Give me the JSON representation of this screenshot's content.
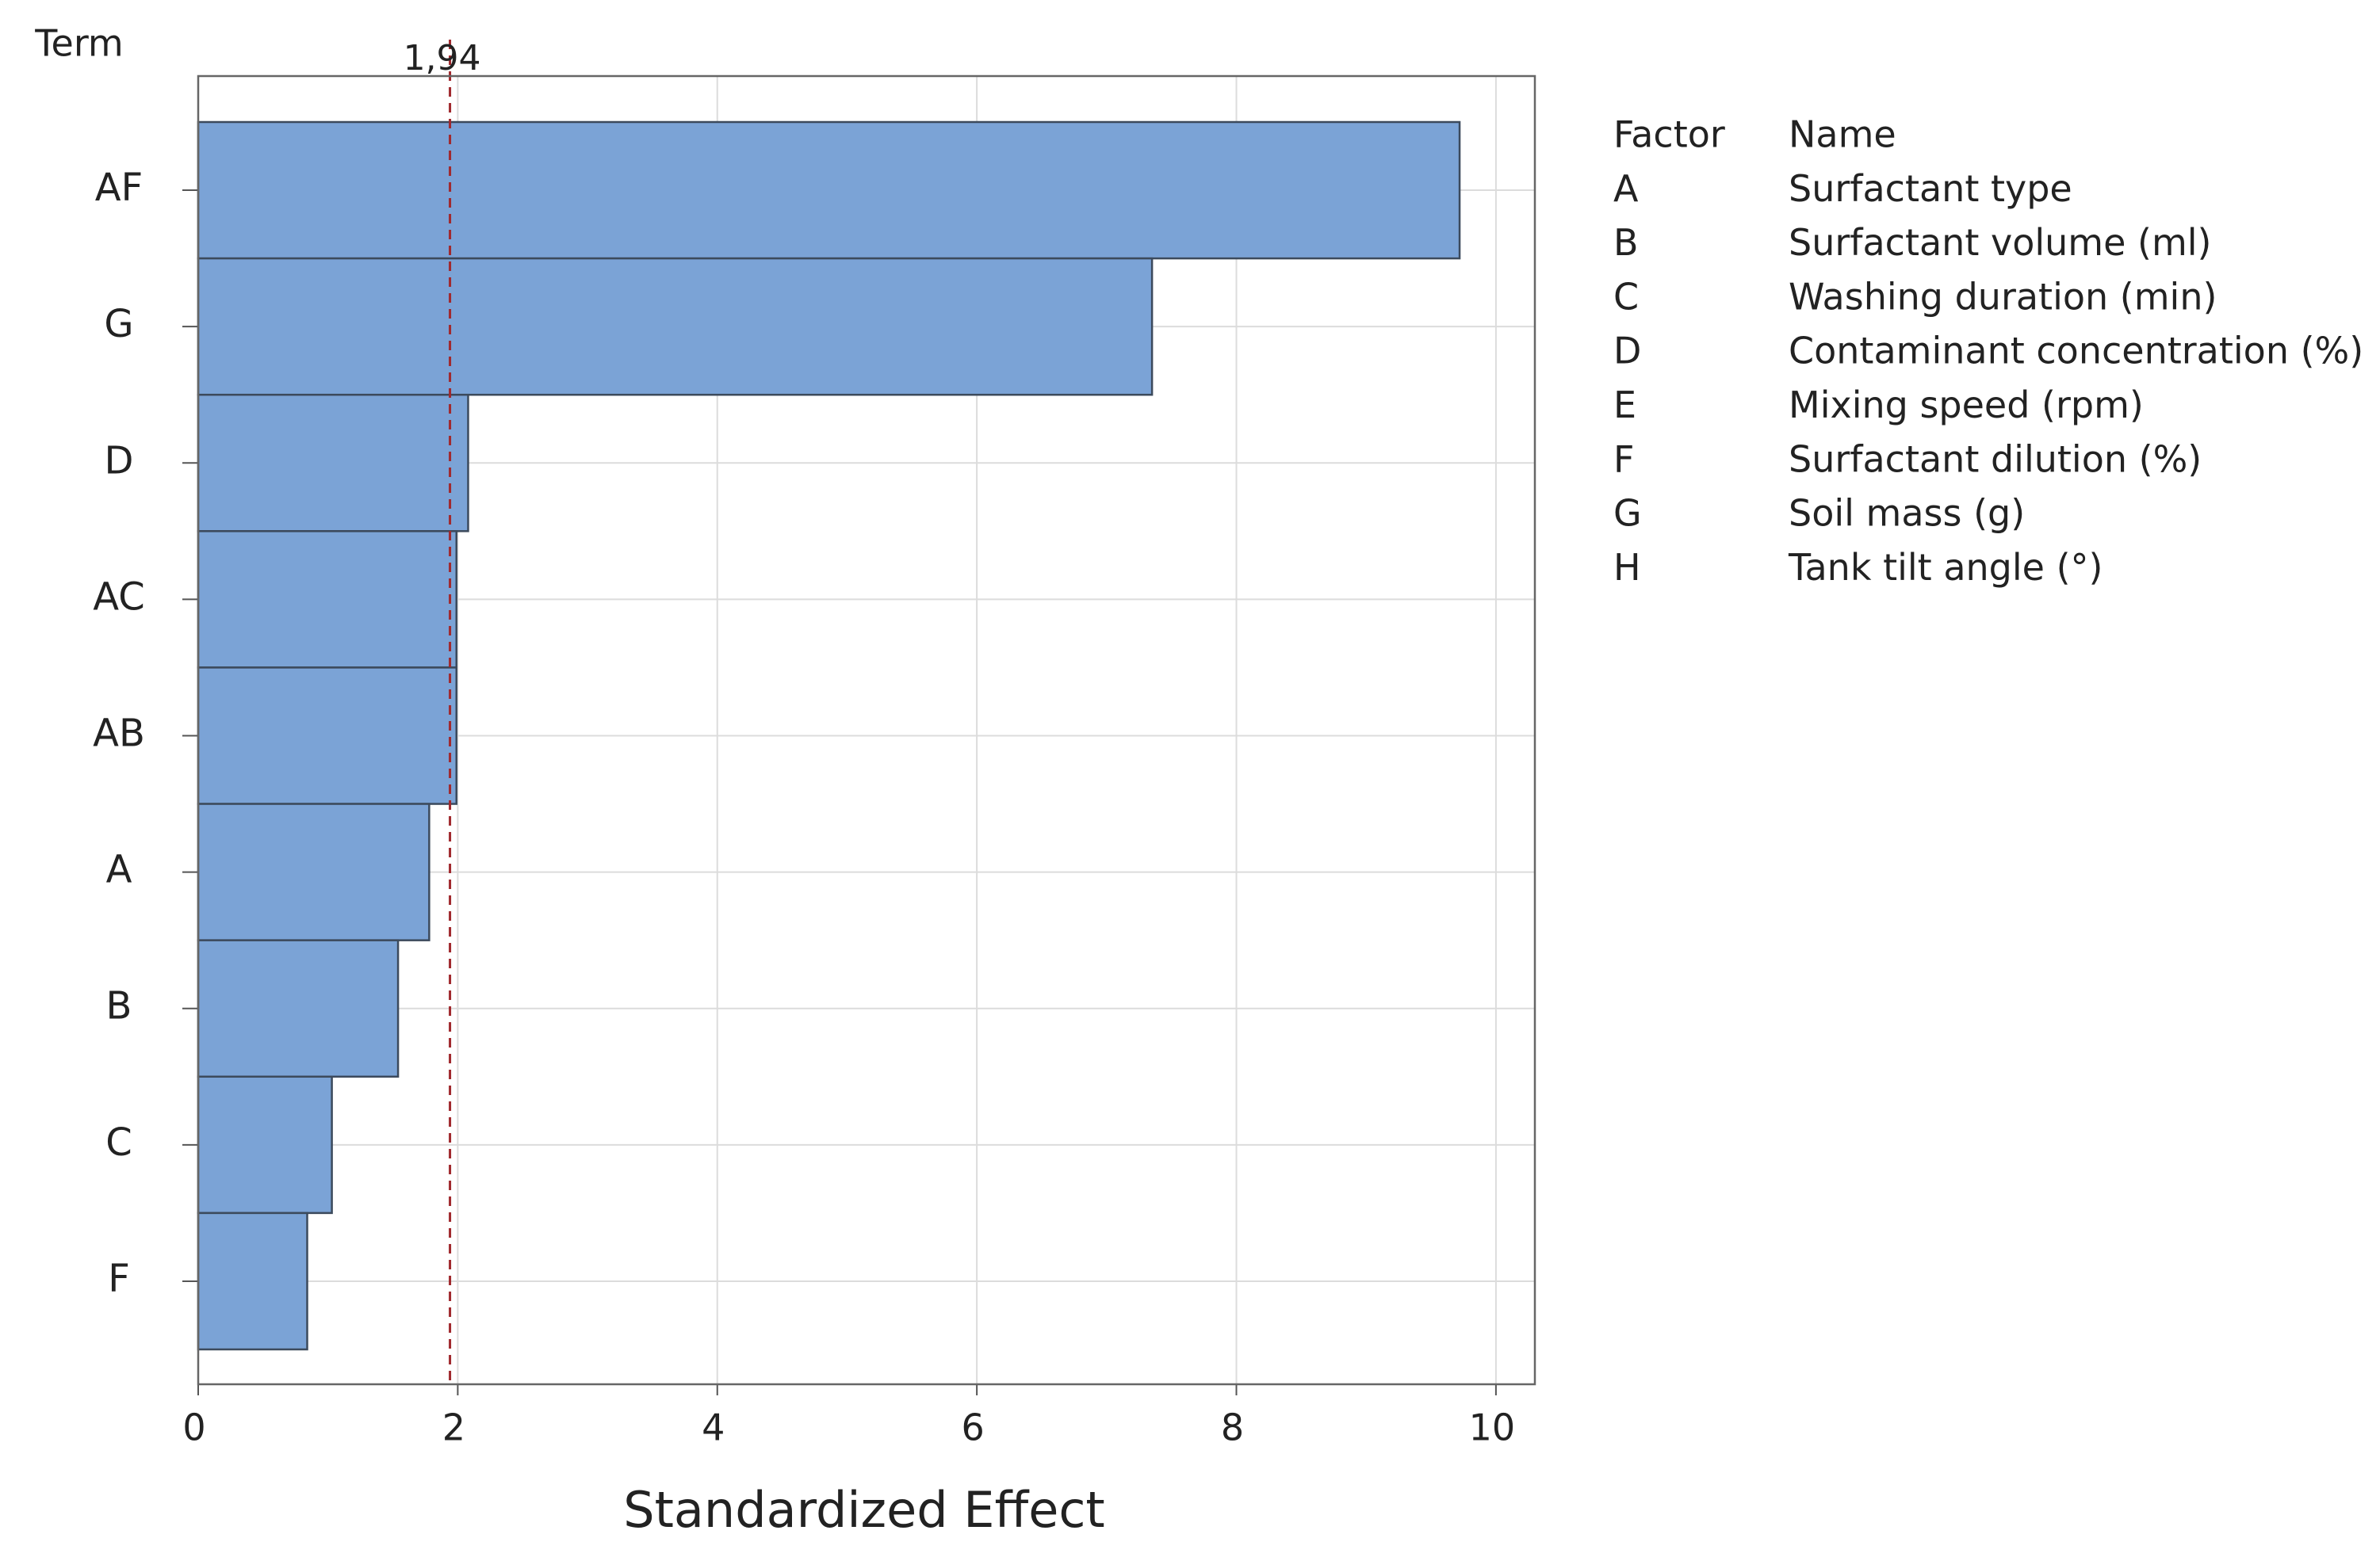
{
  "chart_data": {
    "type": "bar",
    "orientation": "horizontal",
    "ylabel": "Term",
    "xlabel": "Standardized Effect",
    "categories": [
      "AF",
      "G",
      "D",
      "AC",
      "AB",
      "A",
      "B",
      "C",
      "F"
    ],
    "values": [
      9.72,
      7.35,
      2.08,
      1.99,
      1.99,
      1.78,
      1.54,
      1.03,
      0.84
    ],
    "color": "#7ba3d6",
    "xlim": [
      0,
      10.3
    ],
    "xticks": [
      0,
      2,
      4,
      6,
      8,
      10
    ],
    "grid": true,
    "reference_line": {
      "value": 1.94,
      "label": "1,94",
      "color": "#a0282d"
    }
  },
  "factor_table": {
    "headers": [
      "Factor",
      "Name"
    ],
    "rows": [
      [
        "A",
        "Surfactant type"
      ],
      [
        "B",
        "Surfactant volume (ml)"
      ],
      [
        "C",
        "Washing duration (min)"
      ],
      [
        "D",
        "Contaminant concentration (%)"
      ],
      [
        "E",
        "Mixing speed (rpm)"
      ],
      [
        "F",
        "Surfactant dilution (%)"
      ],
      [
        "G",
        "Soil mass (g)"
      ],
      [
        "H",
        "Tank tilt angle (°)"
      ]
    ]
  }
}
